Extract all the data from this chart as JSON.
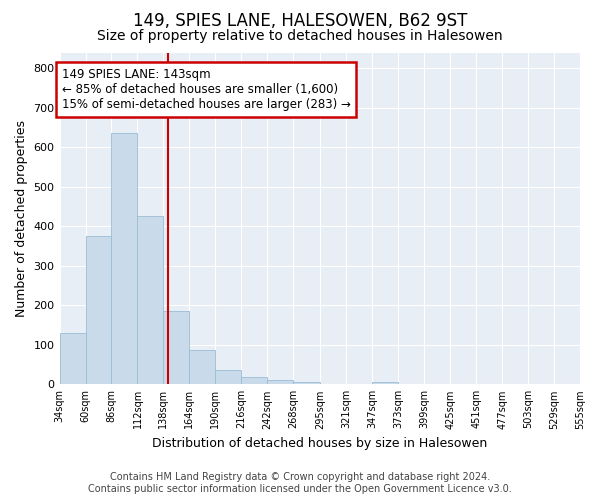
{
  "title": "149, SPIES LANE, HALESOWEN, B62 9ST",
  "subtitle": "Size of property relative to detached houses in Halesowen",
  "xlabel": "Distribution of detached houses by size in Halesowen",
  "ylabel": "Number of detached properties",
  "footnote1": "Contains HM Land Registry data © Crown copyright and database right 2024.",
  "footnote2": "Contains public sector information licensed under the Open Government Licence v3.0.",
  "bar_color": "#c9daea",
  "bar_edge_color": "#9abdd4",
  "vline_color": "#cc0000",
  "vline_value": 143,
  "annotation_line1": "149 SPIES LANE: 143sqm",
  "annotation_line2": "← 85% of detached houses are smaller (1,600)",
  "annotation_line3": "15% of semi-detached houses are larger (283) →",
  "annotation_box_color": "#cc0000",
  "bin_edges": [
    34,
    60,
    86,
    112,
    138,
    164,
    190,
    216,
    242,
    268,
    295,
    321,
    347,
    373,
    399,
    425,
    451,
    477,
    503,
    529,
    555
  ],
  "bar_heights": [
    130,
    375,
    635,
    425,
    185,
    88,
    35,
    18,
    10,
    7,
    0,
    0,
    7,
    0,
    0,
    0,
    0,
    0,
    0,
    0
  ],
  "ylim": [
    0,
    840
  ],
  "plot_bg_color": "#e8eef5",
  "grid_color": "#ffffff",
  "title_fontsize": 12,
  "subtitle_fontsize": 10,
  "tick_label_fontsize": 7,
  "axis_label_fontsize": 9,
  "footnote_fontsize": 7,
  "yticks": [
    0,
    100,
    200,
    300,
    400,
    500,
    600,
    700,
    800
  ]
}
